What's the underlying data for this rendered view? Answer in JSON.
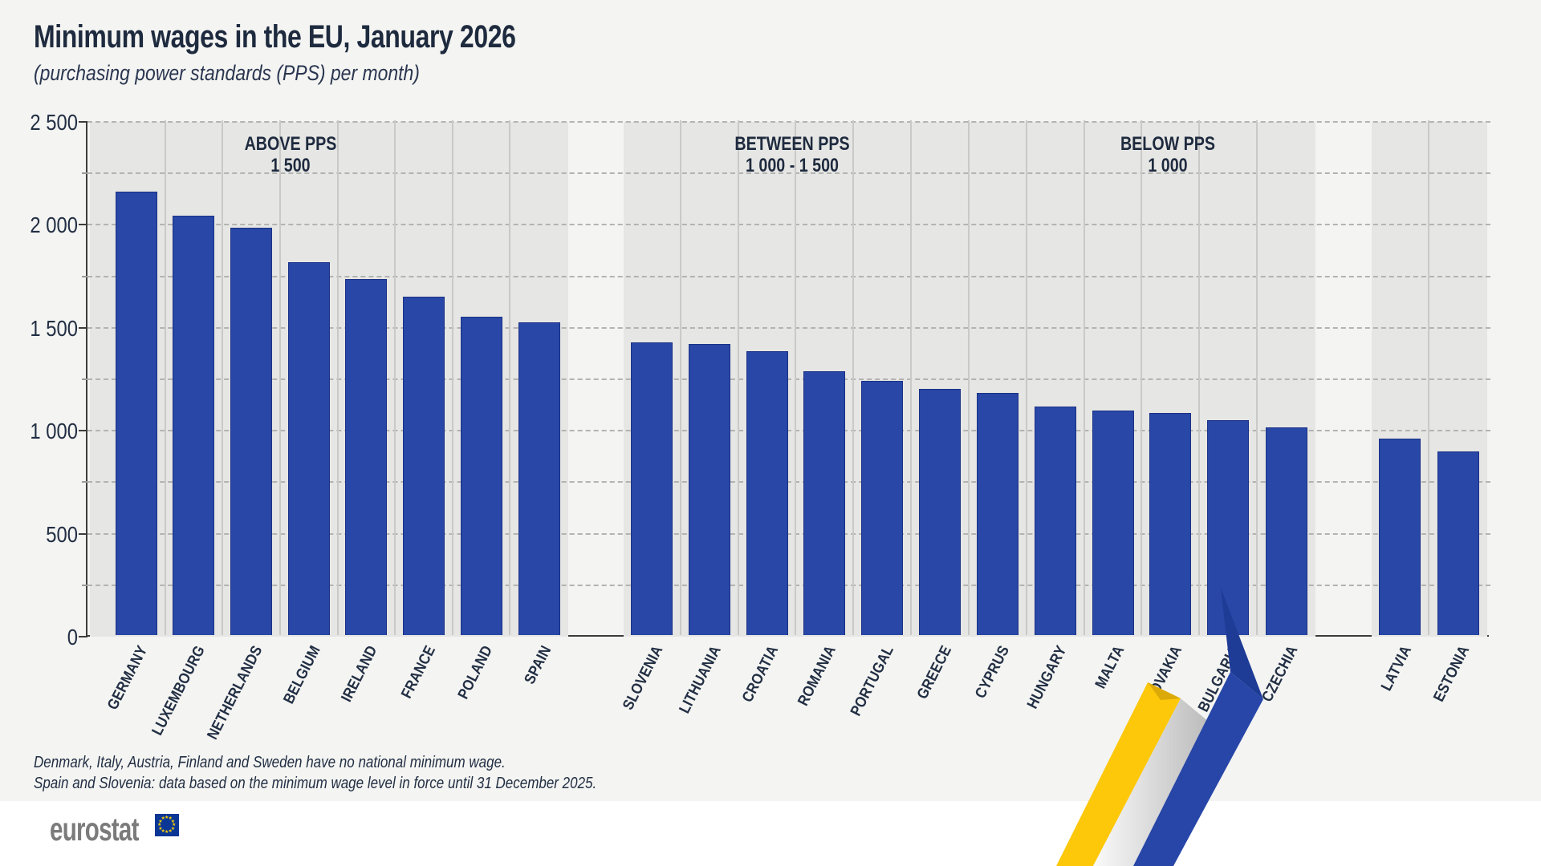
{
  "title": "Minimum wages in the EU, January 2026",
  "subtitle": "(purchasing power standards (PPS) per month)",
  "footnotes": [
    "Denmark, Italy, Austria, Finland and Sweden have no national minimum wage.",
    "Spain and Slovenia: data based on the minimum wage level in force until 31 December 2025."
  ],
  "logo_text": "eurostat",
  "colors": {
    "bar": "#2847a6",
    "bar_border": "#1a3186",
    "panel_bg": "#e6e6e4",
    "page_bg": "#f4f4f2",
    "text_navy": "#222f44",
    "ribbon_yellow": "#fdc80a",
    "ribbon_blue": "#2746a8",
    "flag_blue": "#0a3695",
    "flag_star": "#fdcf00"
  },
  "chart_data": {
    "type": "bar",
    "title": "Minimum wages in the EU, January 2026",
    "subtitle": "(purchasing power standards (PPS) per month)",
    "unit": "PPS per month",
    "ylim": [
      0,
      2500
    ],
    "ytick_values": [
      2500,
      2000,
      1500,
      1000,
      500,
      0
    ],
    "ytick_labels": [
      "2 500",
      "2 000",
      "1 500",
      "1 000",
      "500",
      "0"
    ],
    "gridline_step": 250,
    "grid": "horizontal dashed",
    "legend_position": "none",
    "groups": [
      {
        "heading": [
          "ABOVE PPS",
          "1 500"
        ],
        "categories": [
          "GERMANY",
          "LUXEMBOURG",
          "NETHERLANDS",
          "BELGIUM",
          "IRELAND",
          "FRANCE",
          "POLAND",
          "SPAIN"
        ],
        "values": [
          2155,
          2035,
          1980,
          1810,
          1730,
          1645,
          1545,
          1520
        ]
      },
      {
        "heading": [
          "BETWEEN PPS",
          "1 000 - 1 500"
        ],
        "categories": [
          "SLOVENIA",
          "LITHUANIA",
          "CROATIA",
          "ROMANIA",
          "PORTUGAL",
          "GREECE",
          "CYPRUS",
          "HUNGARY",
          "MALTA",
          "SLOVAKIA",
          "BULGARIA",
          "CZECHIA"
        ],
        "values": [
          1420,
          1415,
          1380,
          1280,
          1235,
          1195,
          1175,
          1110,
          1090,
          1080,
          1045,
          1010
        ]
      },
      {
        "heading": [
          "BELOW PPS",
          "1 000"
        ],
        "categories": [
          "LATVIA",
          "ESTONIA"
        ],
        "values": [
          955,
          890
        ]
      }
    ]
  }
}
